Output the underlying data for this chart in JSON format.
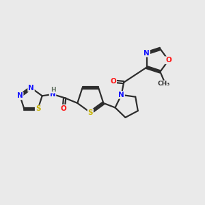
{
  "background_color": "#EAEAEA",
  "bond_color": "#2D2D2D",
  "bond_width": 1.6,
  "atom_colors": {
    "N": "#1414FF",
    "O": "#FF1414",
    "S": "#C8B400",
    "H": "#607060",
    "C": "#2D2D2D"
  },
  "font_size": 7.5,
  "fig_width": 3.0,
  "fig_height": 3.0,
  "dpi": 100
}
